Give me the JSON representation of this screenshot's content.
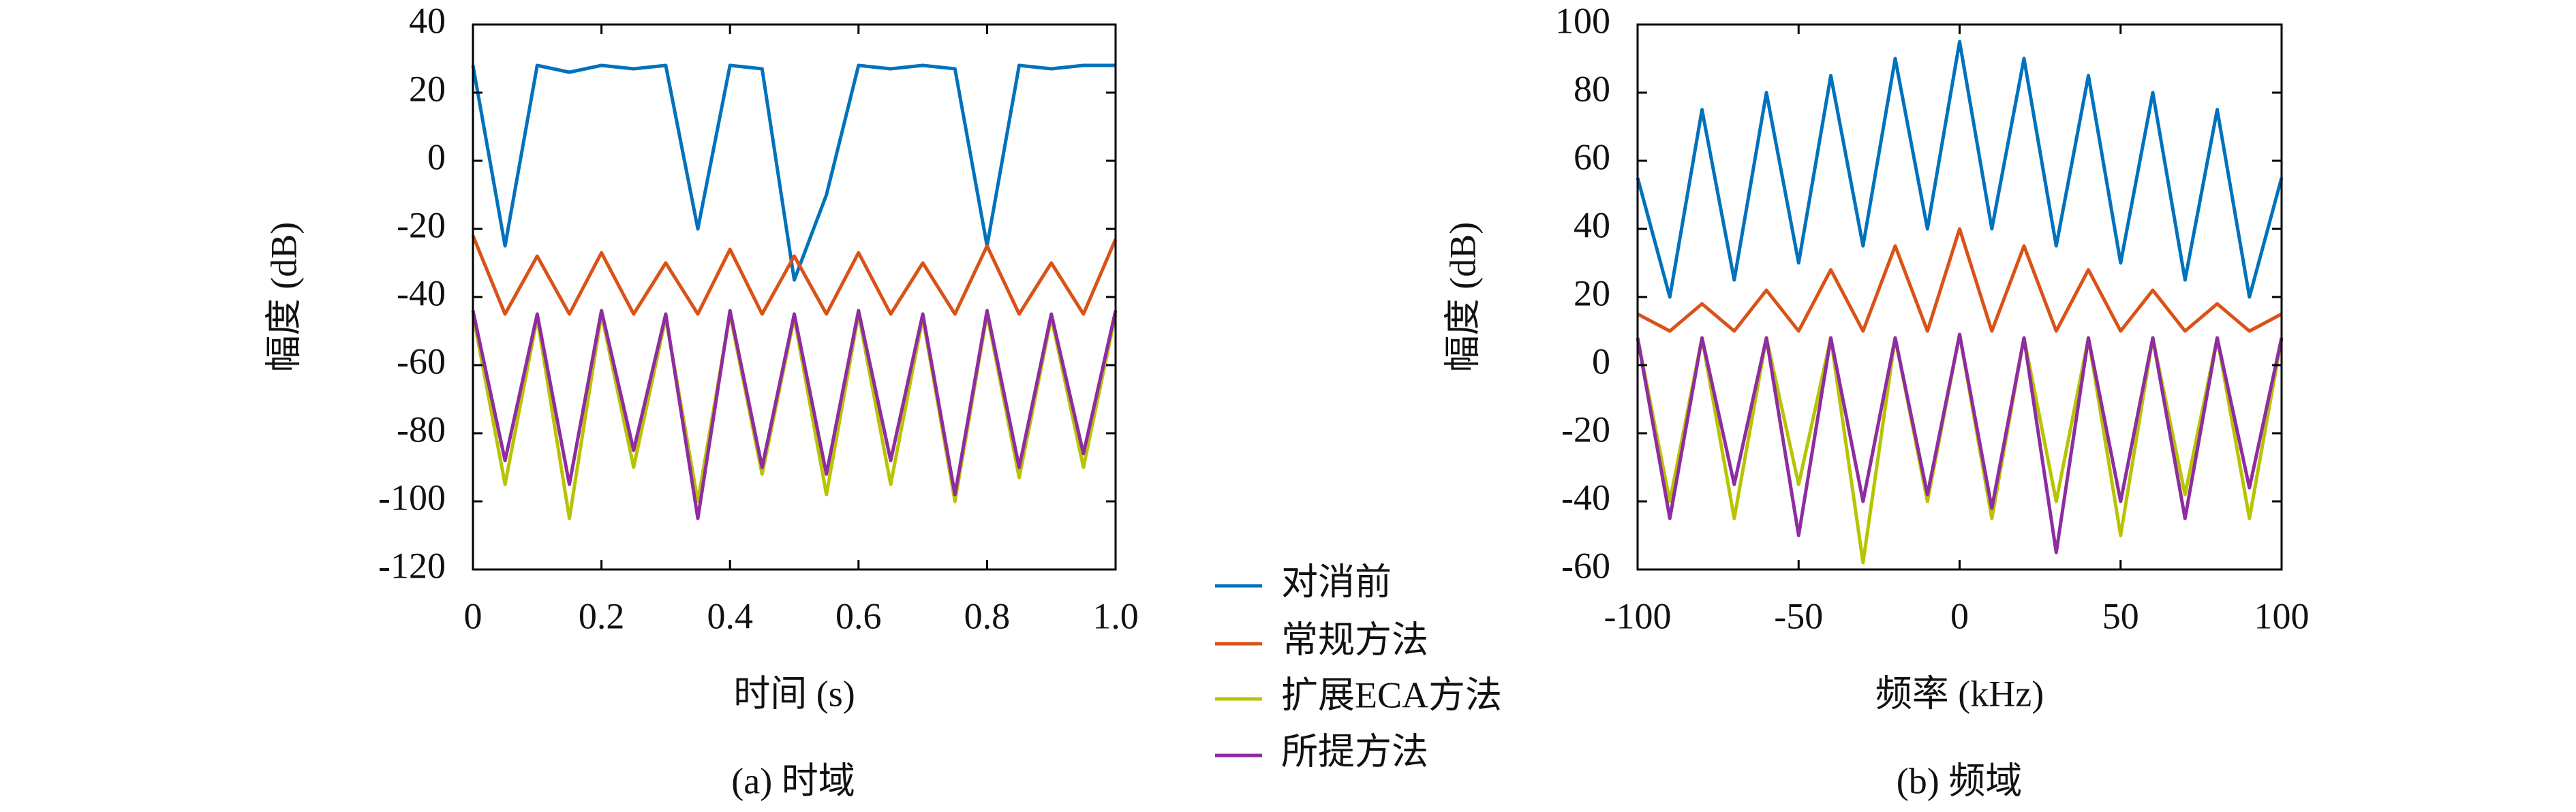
{
  "chart_data": [
    {
      "type": "line",
      "caption": "(a) 时域",
      "xlabel": "时间 (s)",
      "ylabel": "幅度 (dB)",
      "x": [
        0,
        0.05,
        0.1,
        0.15,
        0.2,
        0.25,
        0.3,
        0.35,
        0.4,
        0.45,
        0.5,
        0.55,
        0.6,
        0.65,
        0.7,
        0.75,
        0.8,
        0.85,
        0.9,
        0.95,
        1.0
      ],
      "xlim": [
        0,
        1
      ],
      "xticks": [
        0,
        0.2,
        0.4,
        0.6,
        0.8,
        {
          "value": 1,
          "label": "1.0"
        }
      ],
      "ylim": [
        -120,
        40
      ],
      "yticks": [
        -120,
        -100,
        -80,
        -60,
        -40,
        -20,
        0,
        20,
        40
      ],
      "series": [
        {
          "name": "对消前",
          "color": "#0072bd",
          "values": [
            28,
            -25,
            28,
            26,
            28,
            27,
            28,
            -20,
            28,
            27,
            -35,
            -10,
            28,
            27,
            28,
            27,
            -25,
            28,
            27,
            28,
            28
          ]
        },
        {
          "name": "常规方法",
          "color": "#d95319",
          "values": [
            -22,
            -45,
            -28,
            -45,
            -27,
            -45,
            -30,
            -45,
            -26,
            -45,
            -28,
            -45,
            -27,
            -45,
            -30,
            -45,
            -25,
            -45,
            -30,
            -45,
            -23
          ]
        },
        {
          "name": "扩展ECA方法",
          "color": "#b8c400",
          "values": [
            -45,
            -95,
            -46,
            -105,
            -45,
            -90,
            -46,
            -100,
            -45,
            -92,
            -46,
            -98,
            -45,
            -95,
            -46,
            -100,
            -45,
            -93,
            -46,
            -90,
            -45
          ]
        },
        {
          "name": "所提方法",
          "color": "#8e2ca0",
          "values": [
            -44,
            -88,
            -45,
            -95,
            -44,
            -85,
            -45,
            -105,
            -44,
            -90,
            -45,
            -92,
            -44,
            -88,
            -45,
            -98,
            -44,
            -90,
            -45,
            -86,
            -44
          ]
        }
      ]
    },
    {
      "type": "line",
      "caption": "(b) 频域",
      "xlabel": "频率 (kHz)",
      "ylabel": "幅度 (dB)",
      "x": [
        -100,
        -90,
        -80,
        -70,
        -60,
        -50,
        -40,
        -30,
        -20,
        -10,
        0,
        10,
        20,
        30,
        40,
        50,
        60,
        70,
        80,
        90,
        100
      ],
      "xlim": [
        -100,
        100
      ],
      "xticks": [
        -100,
        -50,
        0,
        50,
        100
      ],
      "ylim": [
        -60,
        100
      ],
      "yticks": [
        -60,
        -40,
        -20,
        0,
        20,
        40,
        60,
        80,
        100
      ],
      "series": [
        {
          "color": "#0072bd",
          "values": [
            55,
            20,
            75,
            25,
            80,
            30,
            85,
            35,
            90,
            40,
            95,
            40,
            90,
            35,
            85,
            30,
            80,
            25,
            75,
            20,
            55
          ]
        },
        {
          "color": "#d95319",
          "values": [
            15,
            10,
            18,
            10,
            22,
            10,
            28,
            10,
            35,
            10,
            40,
            10,
            35,
            10,
            28,
            10,
            22,
            10,
            18,
            10,
            15
          ]
        },
        {
          "color": "#b8c400",
          "values": [
            8,
            -40,
            8,
            -45,
            8,
            -35,
            8,
            -58,
            8,
            -40,
            9,
            -45,
            8,
            -40,
            8,
            -50,
            8,
            -38,
            8,
            -45,
            8
          ]
        },
        {
          "color": "#8e2ca0",
          "values": [
            8,
            -45,
            8,
            -35,
            8,
            -50,
            8,
            -40,
            8,
            -38,
            9,
            -42,
            8,
            -55,
            8,
            -40,
            8,
            -45,
            8,
            -36,
            8
          ]
        }
      ]
    }
  ]
}
